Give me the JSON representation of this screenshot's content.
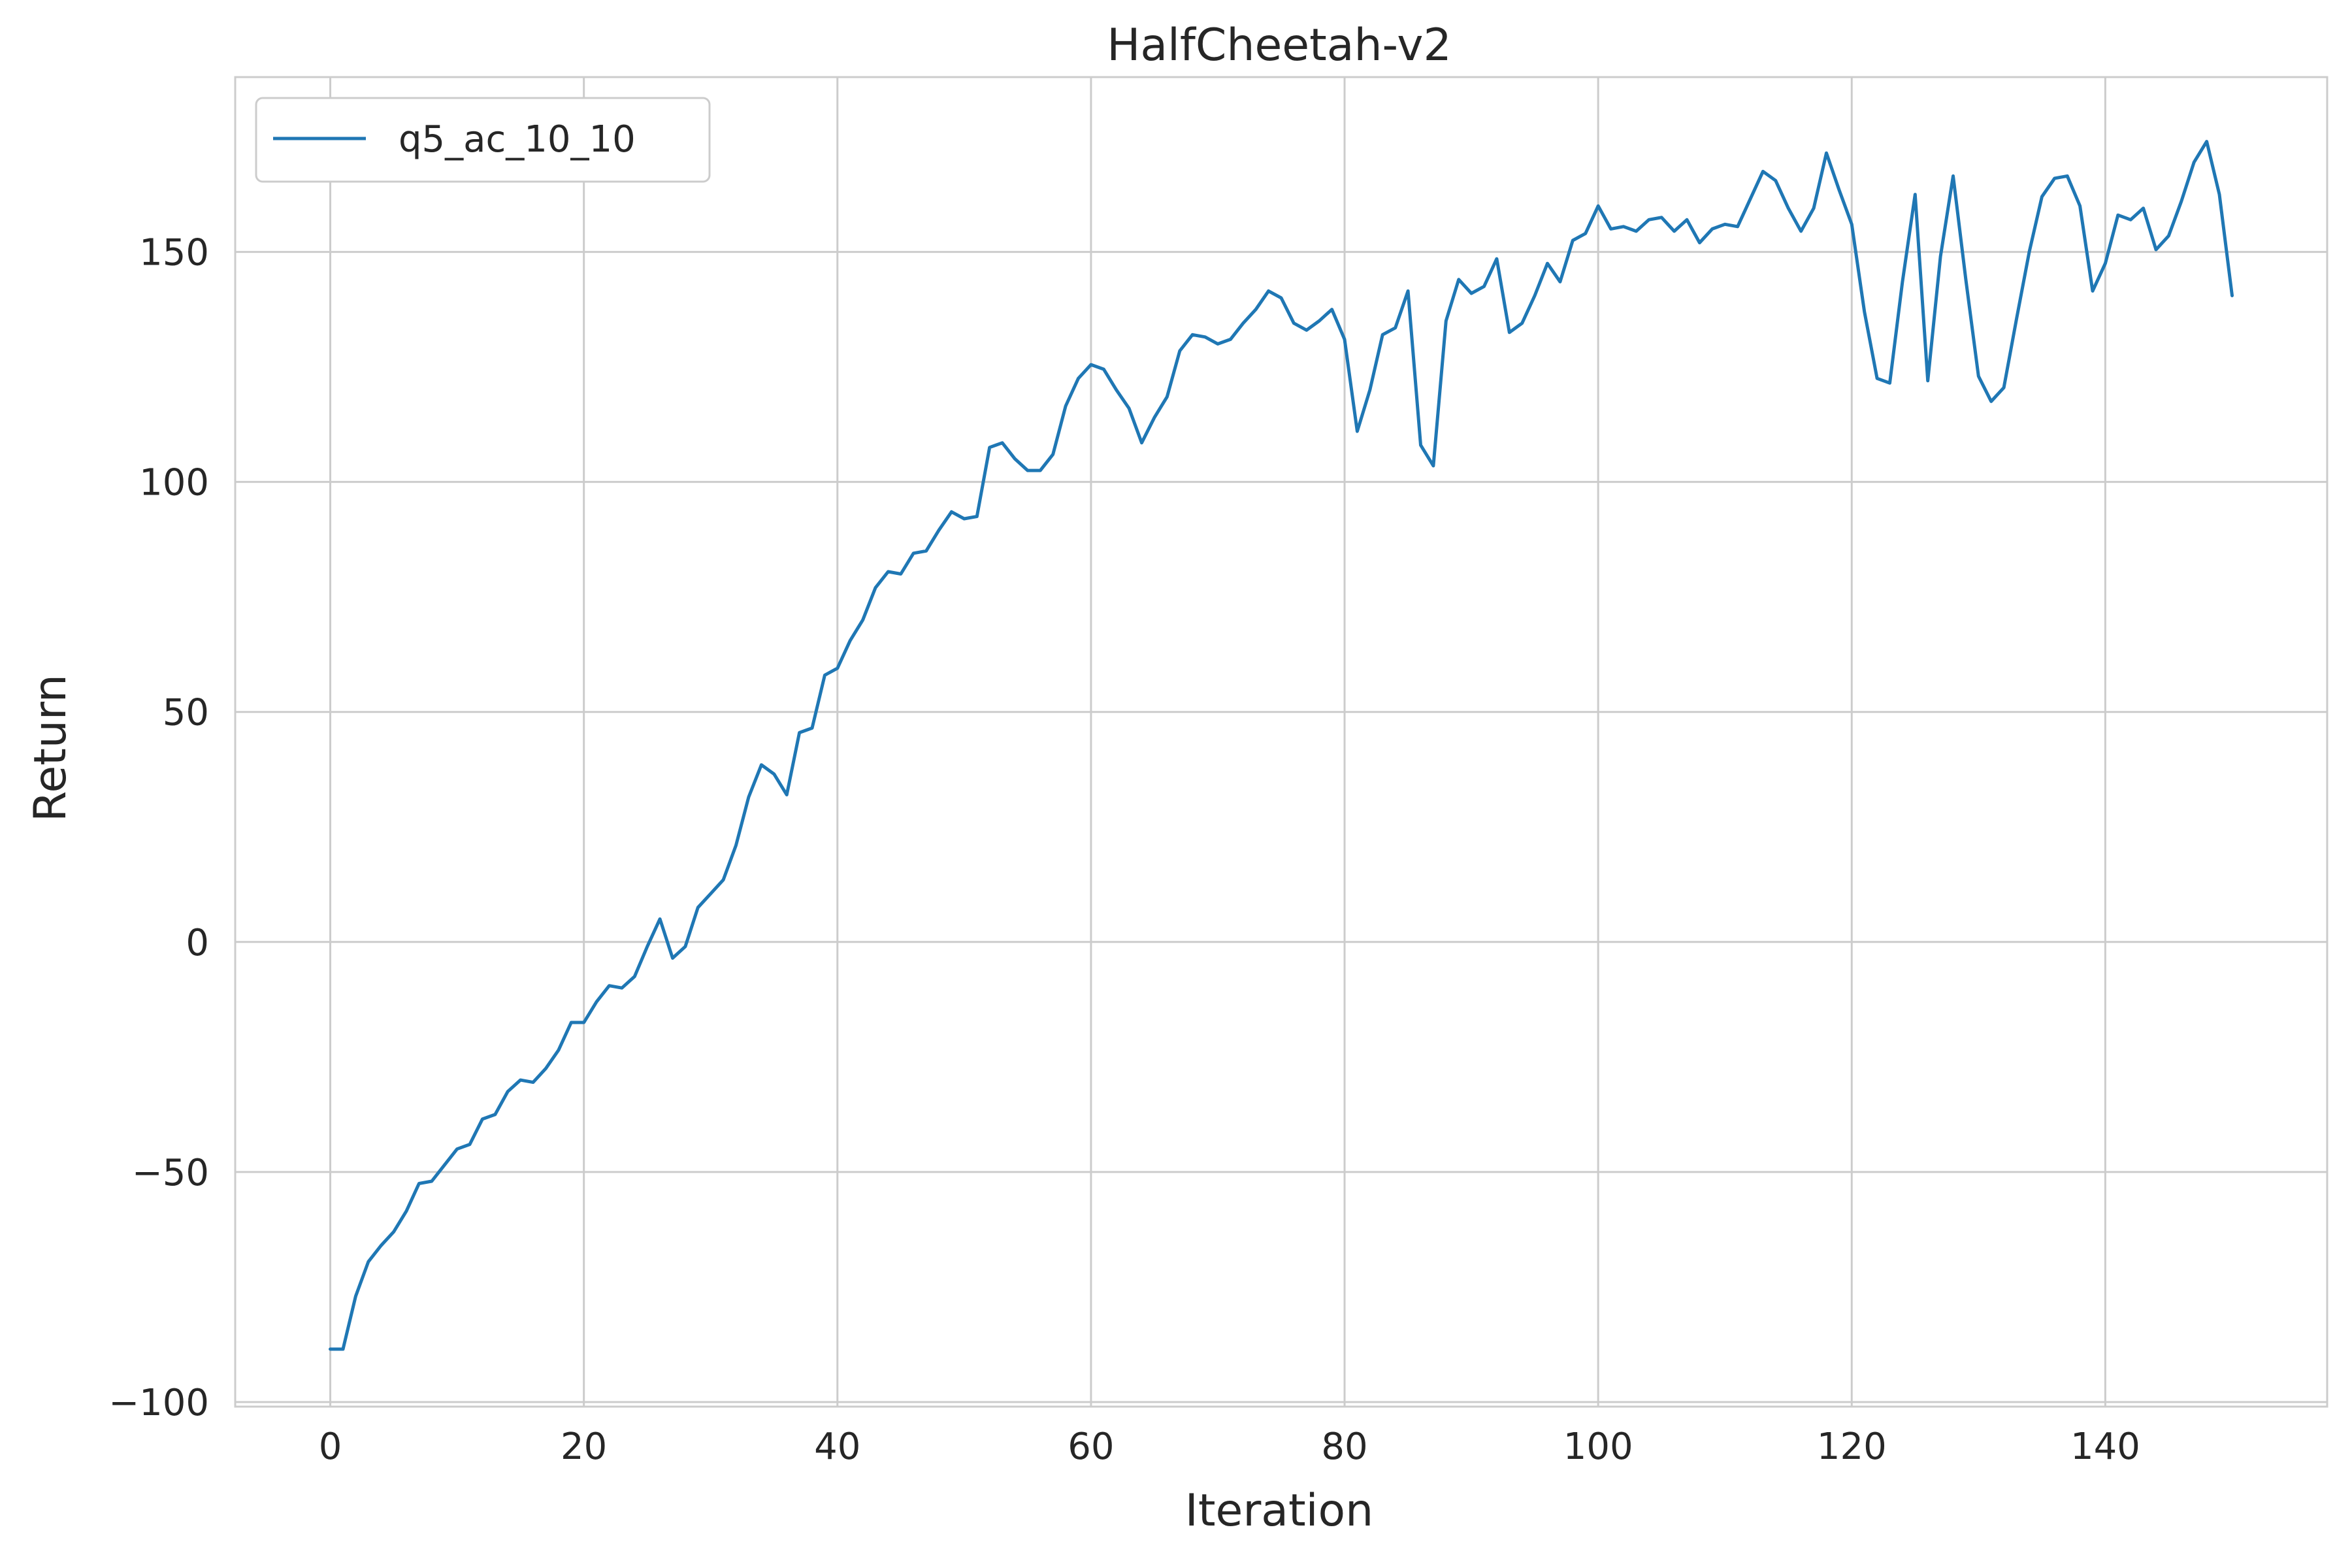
{
  "chart_data": {
    "type": "line",
    "title": "HalfCheetah-v2",
    "xlabel": "Iteration",
    "ylabel": "Return",
    "xlim": [
      -7.5,
      157.5
    ],
    "ylim": [
      -101,
      188
    ],
    "xticks": [
      0,
      20,
      40,
      60,
      80,
      100,
      120,
      140
    ],
    "yticks": [
      -100,
      -50,
      0,
      50,
      100,
      150
    ],
    "grid": true,
    "legend_position": "upper-left",
    "series": [
      {
        "name": "q5_ac_10_10",
        "color": "#1f77b4",
        "x": [
          0,
          1,
          2,
          3,
          4,
          5,
          6,
          7,
          8,
          9,
          10,
          11,
          12,
          13,
          14,
          15,
          16,
          17,
          18,
          19,
          20,
          21,
          22,
          23,
          24,
          25,
          26,
          27,
          28,
          29,
          30,
          31,
          32,
          33,
          34,
          35,
          36,
          37,
          38,
          39,
          40,
          41,
          42,
          43,
          44,
          45,
          46,
          47,
          48,
          49,
          50,
          51,
          52,
          53,
          54,
          55,
          56,
          57,
          58,
          59,
          60,
          61,
          62,
          63,
          64,
          65,
          66,
          67,
          68,
          69,
          70,
          71,
          72,
          73,
          74,
          75,
          76,
          77,
          78,
          79,
          80,
          81,
          82,
          83,
          84,
          85,
          86,
          87,
          88,
          89,
          90,
          91,
          92,
          93,
          94,
          95,
          96,
          97,
          98,
          99,
          100,
          101,
          102,
          103,
          104,
          105,
          106,
          107,
          108,
          109,
          110,
          111,
          112,
          113,
          114,
          115,
          116,
          117,
          118,
          119,
          120,
          121,
          122,
          123,
          124,
          125,
          126,
          127,
          128,
          129,
          130,
          131,
          132,
          133,
          134,
          135,
          136,
          137,
          138,
          139,
          140,
          141,
          142,
          143,
          144,
          145,
          146,
          147,
          148,
          149,
          150
        ],
        "values": [
          -88.5,
          -88.5,
          -77,
          -69.5,
          -66,
          -63,
          -58.5,
          -52.5,
          -52,
          -48.5,
          -45,
          -44,
          -38.5,
          -37.5,
          -32.5,
          -30,
          -30.5,
          -27.5,
          -23.5,
          -17.5,
          -17.5,
          -13,
          -9.5,
          -10,
          -7.5,
          -1,
          5,
          -3.5,
          -1,
          7.5,
          10.5,
          13.5,
          21,
          31.5,
          38.5,
          36.5,
          32,
          45.5,
          46.5,
          58,
          59.5,
          65.5,
          70,
          77,
          80.5,
          80,
          84.5,
          85,
          89.5,
          93.5,
          92,
          92.5,
          107.5,
          108.5,
          105,
          102.5,
          102.5,
          106,
          116.5,
          122.5,
          125.5,
          124.5,
          120,
          116,
          108.5,
          114,
          118.5,
          128.5,
          132,
          131.5,
          130,
          131,
          134.5,
          137.5,
          141.5,
          140,
          134.5,
          133,
          135,
          137.5,
          131,
          111,
          120,
          132,
          133.5,
          141.5,
          108,
          103.5,
          135,
          144,
          141,
          142.5,
          148.5,
          132.5,
          134.5,
          140.5,
          147.5,
          143.5,
          152.5,
          154,
          160,
          155,
          155.5,
          154.5,
          157,
          157.5,
          154.5,
          157,
          152,
          155,
          156,
          155.5,
          161.5,
          167.5,
          165.5,
          159.5,
          154.5,
          159.5,
          171.5,
          163.5,
          156,
          137,
          122.5,
          121.5,
          143.5,
          162.5,
          122,
          149,
          166.5,
          144,
          123,
          117.5,
          120.5,
          135.5,
          150,
          162,
          166,
          166.5,
          160,
          141.5,
          147.5,
          158,
          157,
          159.5,
          150.5,
          153.5,
          161,
          169.5,
          174,
          162.5,
          140.5
        ]
      }
    ]
  }
}
